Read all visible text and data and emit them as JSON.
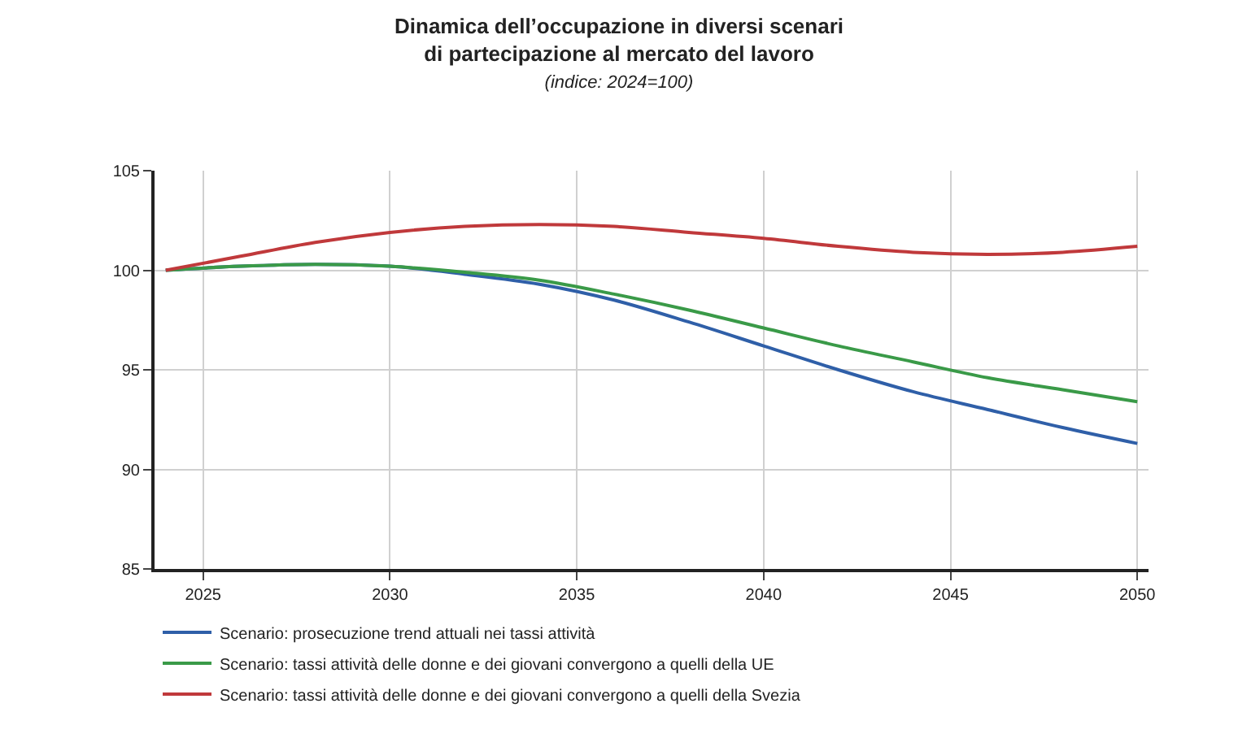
{
  "chart_data": {
    "type": "line",
    "title": "Dinamica dell’occupazione in diversi scenari\ndi partecipazione al mercato del lavoro",
    "subtitle": "(indice: 2024=100)",
    "x": [
      2024,
      2026,
      2028,
      2030,
      2032,
      2034,
      2036,
      2038,
      2040,
      2042,
      2044,
      2046,
      2048,
      2050
    ],
    "series": [
      {
        "name": "Scenario: prosecuzione trend attuali nei tassi attività",
        "color": "#2f5fa8",
        "values": [
          100,
          100.2,
          100.3,
          100.2,
          99.8,
          99.3,
          98.5,
          97.4,
          96.2,
          95.0,
          93.9,
          93.0,
          92.1,
          91.3
        ]
      },
      {
        "name": "Scenario: tassi attività delle donne e dei giovani convergono a quelli della UE",
        "color": "#3a9a48",
        "values": [
          100,
          100.2,
          100.3,
          100.2,
          99.9,
          99.5,
          98.8,
          98.0,
          97.1,
          96.2,
          95.4,
          94.6,
          94.0,
          93.4
        ]
      },
      {
        "name": "Scenario: tassi attività delle donne e dei giovani convergono a quelli della Svezia",
        "color": "#c0393b",
        "values": [
          100,
          100.7,
          101.4,
          101.9,
          102.2,
          102.3,
          102.2,
          101.9,
          101.6,
          101.2,
          100.9,
          100.8,
          100.9,
          101.2
        ]
      }
    ],
    "xlim": [
      2023.7,
      2050.3
    ],
    "xticks": [
      {
        "value": 2025,
        "label": "2025"
      },
      2030,
      2035,
      2040,
      2045,
      2050
    ],
    "ylim": [
      85,
      105
    ],
    "yticks": [
      85,
      90,
      95,
      100,
      105
    ],
    "grid": true,
    "legend": "bottom left",
    "marker": "none",
    "line_style": "solid"
  }
}
